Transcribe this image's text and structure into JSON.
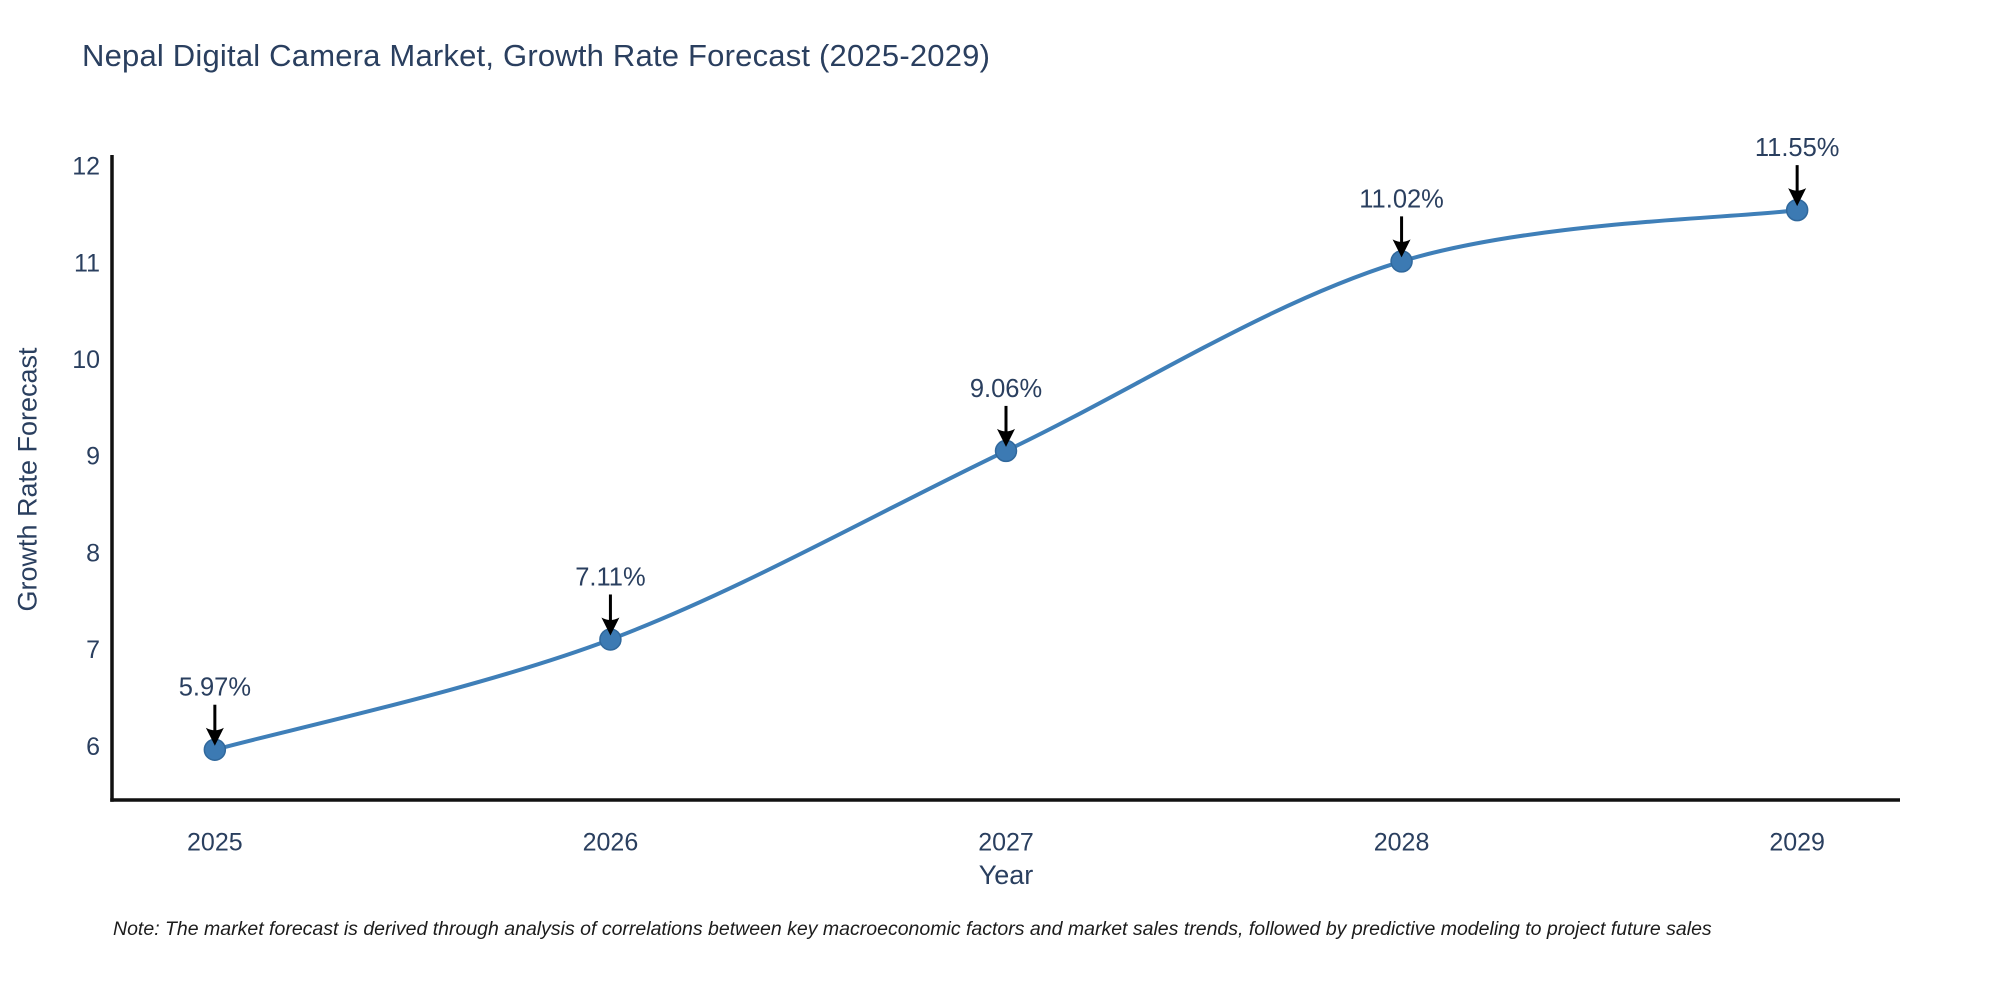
{
  "title": "Nepal Digital Camera Market, Growth Rate Forecast (2025-2029)",
  "note": "Note: The market forecast is derived through analysis of correlations between key macroeconomic factors and market sales trends, followed by predictive modeling to project future sales",
  "chart_data": {
    "type": "line",
    "title": "Nepal Digital Camera Market, Growth Rate Forecast (2025-2029)",
    "x": [
      2025,
      2026,
      2027,
      2028,
      2029
    ],
    "values": [
      5.97,
      7.11,
      9.06,
      11.02,
      11.55
    ],
    "point_labels": [
      "5.97%",
      "7.11%",
      "9.06%",
      "11.02%",
      "11.55%"
    ],
    "xlabel": "Year",
    "ylabel": "Growth Rate Forecast",
    "xticks": [
      "2025",
      "2026",
      "2027",
      "2028",
      "2029"
    ],
    "yticks": [
      6,
      7,
      8,
      9,
      10,
      11,
      12
    ],
    "xlim": [
      2024.74,
      2029.26
    ],
    "ylim": [
      5.45,
      12.12
    ],
    "line_shape": "spline",
    "grid": false,
    "legend": "none",
    "colors": {
      "line": "#3f7fb8",
      "marker": "#3c7ab3",
      "marker_edge": "#30689c",
      "axis": "#111111",
      "tick_text": "#2a3f5f",
      "annotation_text": "#2a3f5f",
      "arrow": "#000000"
    }
  }
}
